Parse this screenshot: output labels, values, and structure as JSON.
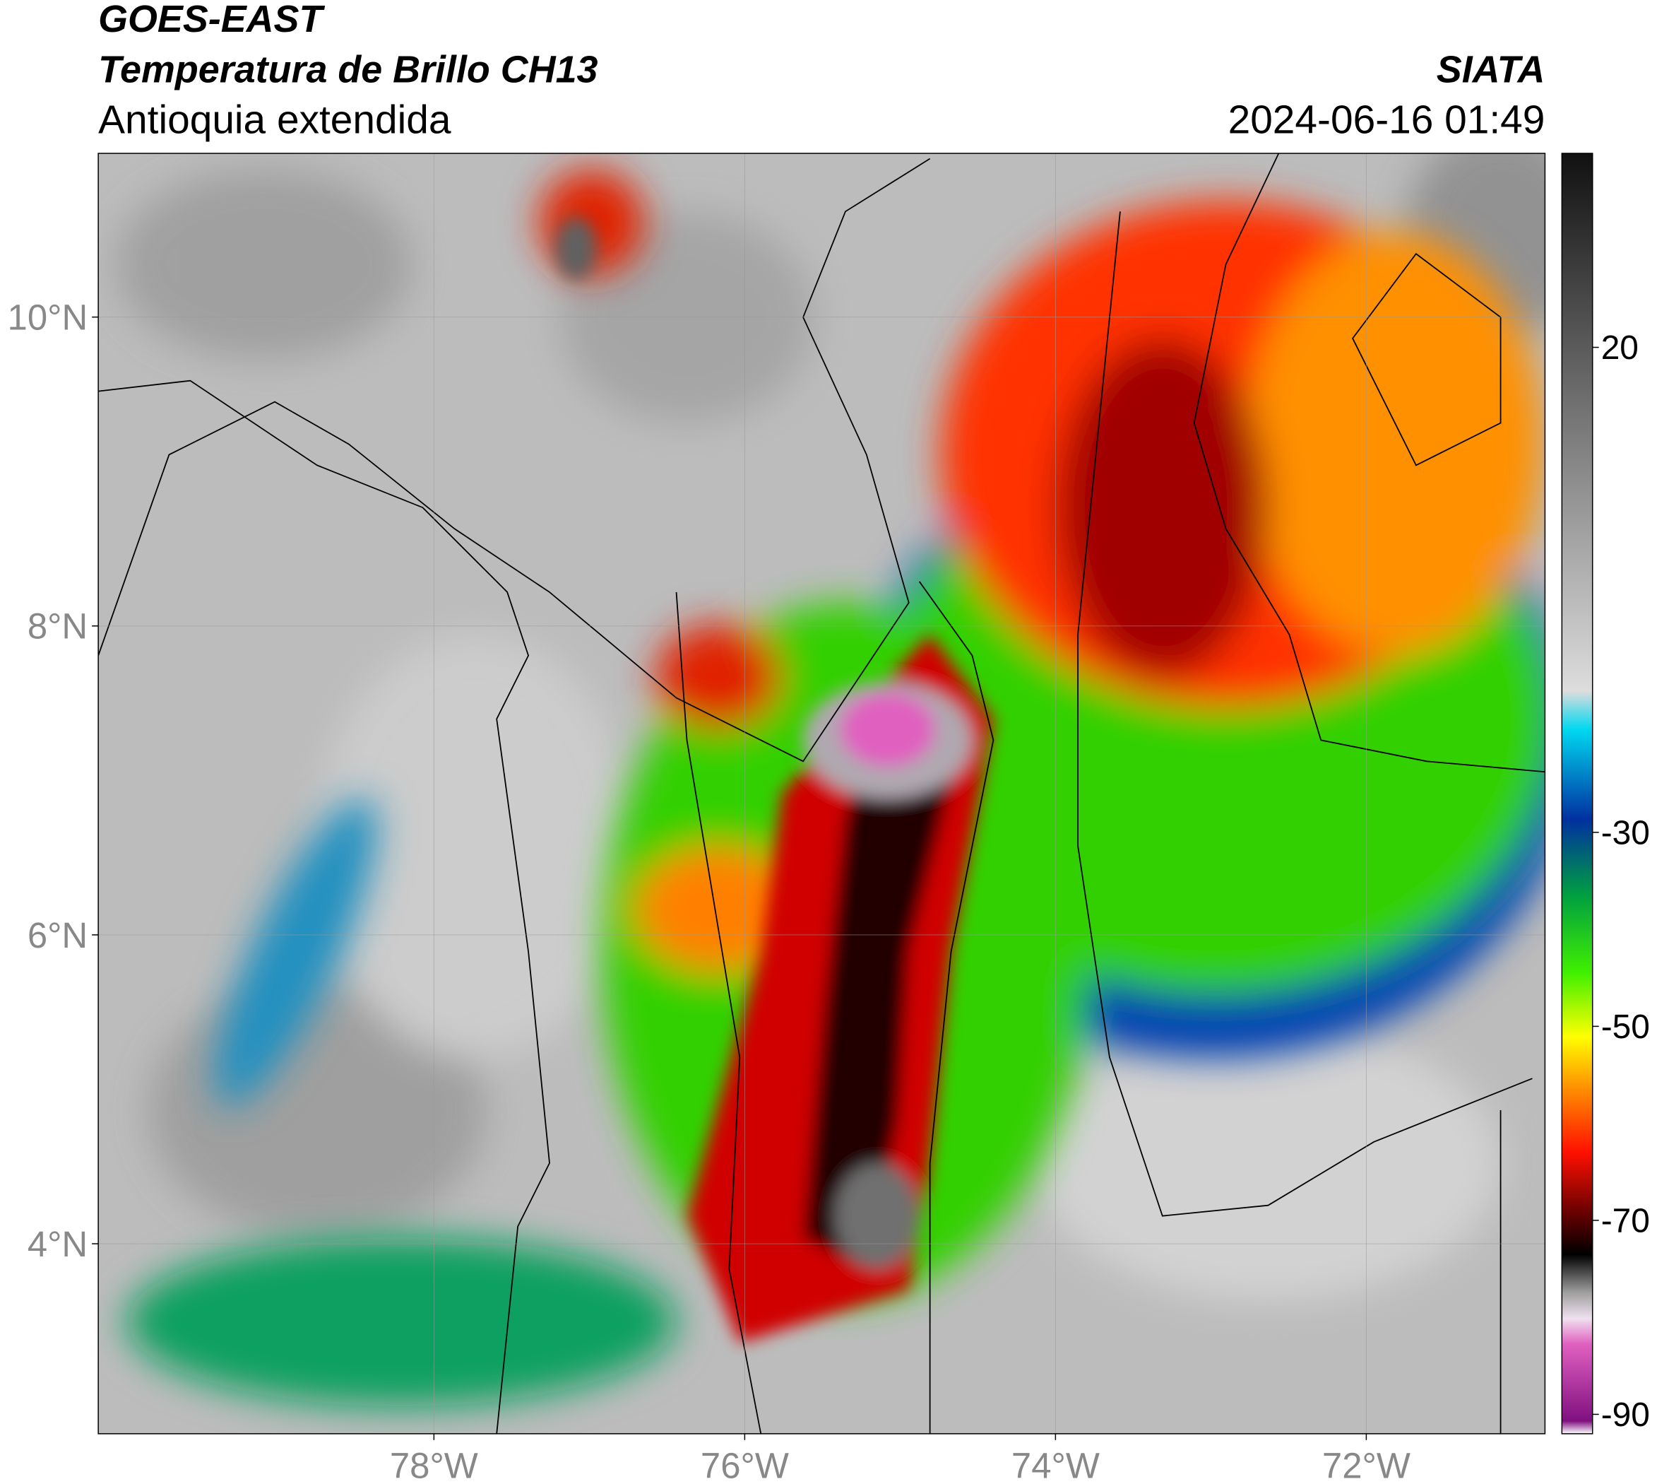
{
  "map": {
    "source": "GOES-EAST",
    "title": "Temperatura de Brillo CH13",
    "region": "Antioquia extendida",
    "agency": "SIATA",
    "datetime": "2024-06-16 01:49",
    "lonlim": [
      -80.16,
      -70.85
    ],
    "latlim": [
      2.77,
      11.06
    ],
    "lonticks": [
      {
        "value": -78,
        "label": "78°W"
      },
      {
        "value": -76,
        "label": "76°W"
      },
      {
        "value": -74,
        "label": "74°W"
      },
      {
        "value": -72,
        "label": "72°W"
      }
    ],
    "latticks": [
      {
        "value": 4,
        "label": "4°N"
      },
      {
        "value": 6,
        "label": "6°N"
      },
      {
        "value": 8,
        "label": "8°N"
      },
      {
        "value": 10,
        "label": "10°N"
      }
    ],
    "grid": true,
    "colorbar": {
      "clim": [
        -92,
        40
      ],
      "ticks": [
        20,
        -30,
        -50,
        -70,
        -90
      ]
    }
  }
}
